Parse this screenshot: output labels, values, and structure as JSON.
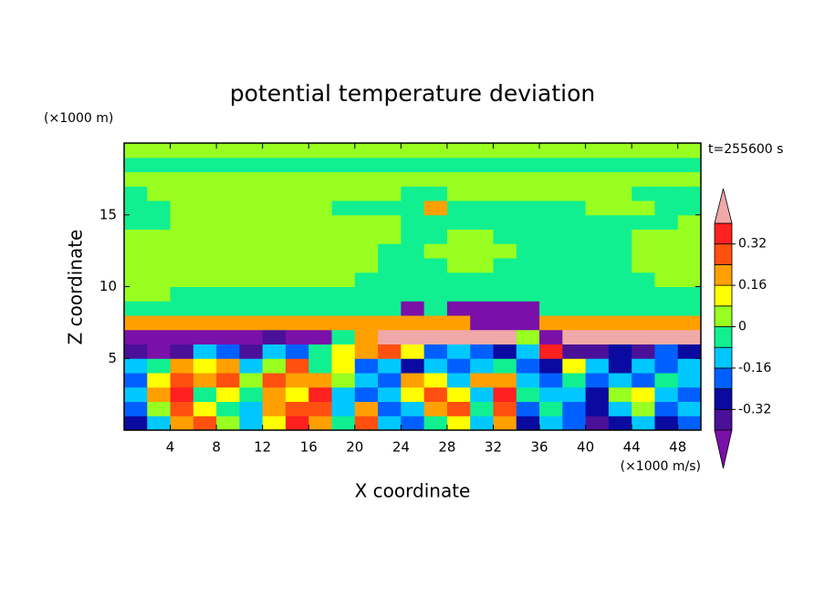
{
  "chart_data": {
    "type": "contour",
    "title": "potential temperature deviation",
    "time_label": "t=255600 s",
    "xlabel": "X coordinate",
    "xunit": "(×1000 m/s)",
    "ylabel": "Z coordinate",
    "yunit": "(×1000 m)",
    "xlim": [
      0,
      50
    ],
    "xticks": [
      4,
      8,
      12,
      16,
      20,
      24,
      28,
      32,
      36,
      40,
      44,
      48
    ],
    "ylim": [
      0,
      20
    ],
    "yticks": [
      5,
      10,
      15
    ],
    "levels": [
      -0.4,
      -0.32,
      -0.24,
      -0.16,
      -0.08,
      0,
      0.08,
      0.16,
      0.24,
      0.32,
      0.4
    ],
    "colors": [
      "#7a10a8",
      "#4a1098",
      "#0a0aa0",
      "#0060ff",
      "#00c8ff",
      "#10f090",
      "#98ff20",
      "#ffff00",
      "#ffa000",
      "#ff5010",
      "#ff2020",
      "#f0a8a8"
    ],
    "cbar_ticks": [
      0.32,
      0.16,
      0,
      -0.16,
      -0.32
    ],
    "x": [
      1,
      3,
      5,
      7,
      9,
      11,
      13,
      15,
      17,
      19,
      21,
      23,
      25,
      27,
      29,
      31,
      33,
      35,
      37,
      39,
      41,
      43,
      45,
      47,
      49
    ],
    "y": [
      0.5,
      1.5,
      2.5,
      3.5,
      4.5,
      5.5,
      6.5,
      7.5,
      8.5,
      9.5,
      10.5,
      11.5,
      12.5,
      13.5,
      14.5,
      15.5,
      16.5,
      17.5,
      18.5,
      19.5
    ],
    "values": [
      [
        -0.28,
        -0.12,
        0.2,
        0.28,
        0.04,
        -0.12,
        0.12,
        0.36,
        0.2,
        -0.04,
        0.28,
        -0.12,
        -0.2,
        -0.04,
        0.12,
        -0.12,
        0.2,
        -0.28,
        -0.12,
        -0.2,
        -0.36,
        -0.28,
        -0.12,
        -0.28,
        -0.2
      ],
      [
        -0.2,
        0.04,
        0.28,
        0.12,
        -0.04,
        -0.12,
        0.2,
        0.28,
        0.28,
        -0.12,
        0.2,
        -0.2,
        -0.12,
        0.2,
        0.28,
        -0.04,
        0.28,
        -0.2,
        -0.04,
        -0.2,
        -0.28,
        -0.12,
        0.04,
        -0.2,
        -0.12
      ],
      [
        -0.12,
        0.2,
        0.36,
        -0.04,
        0.12,
        -0.04,
        0.2,
        0.12,
        0.36,
        -0.12,
        -0.2,
        -0.12,
        0.12,
        0.28,
        0.12,
        -0.12,
        0.36,
        -0.04,
        -0.12,
        -0.12,
        -0.28,
        0.04,
        0.12,
        -0.12,
        -0.2
      ],
      [
        -0.2,
        0.12,
        0.28,
        0.2,
        0.28,
        0.04,
        0.28,
        0.2,
        0.2,
        0.04,
        -0.12,
        -0.2,
        0.2,
        0.12,
        -0.12,
        0.2,
        0.2,
        -0.12,
        -0.2,
        -0.04,
        -0.2,
        -0.12,
        -0.2,
        -0.04,
        -0.12
      ],
      [
        -0.12,
        -0.04,
        0.2,
        0.12,
        0.2,
        -0.12,
        0.04,
        0.28,
        -0.04,
        0.12,
        -0.2,
        -0.12,
        -0.28,
        -0.12,
        -0.2,
        -0.12,
        -0.04,
        -0.2,
        -0.28,
        0.12,
        -0.12,
        -0.28,
        -0.12,
        -0.2,
        -0.12
      ],
      [
        -0.36,
        -0.45,
        -0.36,
        -0.12,
        -0.2,
        -0.36,
        -0.12,
        -0.2,
        -0.04,
        0.12,
        0.2,
        0.28,
        0.12,
        -0.2,
        -0.12,
        -0.2,
        -0.28,
        -0.12,
        0.36,
        -0.36,
        -0.36,
        -0.28,
        -0.36,
        -0.2,
        -0.28
      ],
      [
        -0.45,
        -0.45,
        -0.45,
        -0.45,
        -0.45,
        -0.45,
        -0.36,
        -0.45,
        -0.45,
        -0.04,
        0.2,
        0.45,
        0.45,
        0.45,
        0.45,
        0.45,
        0.45,
        0.04,
        -0.45,
        0.45,
        0.45,
        0.45,
        0.45,
        0.45,
        0.45
      ],
      [
        0.2,
        0.2,
        0.2,
        0.2,
        0.2,
        0.2,
        0.2,
        0.2,
        0.2,
        0.2,
        0.2,
        0.2,
        0.2,
        0.2,
        0.2,
        -0.45,
        -0.45,
        -0.45,
        0.2,
        0.2,
        0.2,
        0.2,
        0.2,
        0.2,
        0.2
      ],
      [
        -0.04,
        -0.04,
        -0.04,
        -0.04,
        -0.04,
        -0.04,
        -0.04,
        -0.04,
        -0.04,
        -0.04,
        -0.04,
        -0.04,
        -0.45,
        -0.04,
        -0.45,
        -0.45,
        -0.45,
        -0.45,
        -0.04,
        -0.04,
        -0.04,
        -0.04,
        -0.04,
        -0.04,
        -0.04
      ],
      [
        0.04,
        0.04,
        -0.04,
        -0.04,
        -0.04,
        -0.04,
        -0.04,
        -0.04,
        -0.04,
        -0.04,
        -0.04,
        -0.04,
        -0.04,
        -0.04,
        -0.04,
        -0.04,
        -0.04,
        -0.04,
        -0.04,
        -0.04,
        -0.04,
        -0.04,
        -0.04,
        -0.04,
        -0.04
      ],
      [
        0.04,
        0.04,
        0.04,
        0.04,
        0.04,
        0.04,
        0.04,
        0.04,
        0.04,
        0.04,
        -0.04,
        -0.04,
        -0.04,
        -0.04,
        -0.04,
        -0.04,
        -0.04,
        -0.04,
        -0.04,
        -0.04,
        -0.04,
        -0.04,
        -0.04,
        0.04,
        0.04
      ],
      [
        0.04,
        0.04,
        0.04,
        0.04,
        0.04,
        0.04,
        0.04,
        0.04,
        0.04,
        0.04,
        0.04,
        -0.04,
        -0.04,
        -0.04,
        0.04,
        0.04,
        -0.04,
        -0.04,
        -0.04,
        -0.04,
        -0.04,
        -0.04,
        0.04,
        0.04,
        0.04
      ],
      [
        0.04,
        0.04,
        0.04,
        0.04,
        0.04,
        0.04,
        0.04,
        0.04,
        0.04,
        0.04,
        0.04,
        -0.04,
        -0.04,
        0.04,
        0.04,
        0.04,
        0.04,
        -0.04,
        -0.04,
        -0.04,
        -0.04,
        -0.04,
        0.04,
        0.04,
        0.04
      ],
      [
        0.04,
        0.04,
        0.04,
        0.04,
        0.04,
        0.04,
        0.04,
        0.04,
        0.04,
        0.04,
        0.04,
        0.04,
        -0.04,
        -0.04,
        0.04,
        0.04,
        -0.04,
        -0.04,
        -0.04,
        -0.04,
        -0.04,
        -0.04,
        0.04,
        0.04,
        0.04
      ],
      [
        -0.04,
        -0.04,
        0.04,
        0.04,
        0.04,
        0.04,
        0.04,
        0.04,
        0.04,
        0.04,
        0.04,
        0.04,
        -0.04,
        -0.04,
        -0.04,
        -0.04,
        -0.04,
        -0.04,
        -0.04,
        -0.04,
        -0.04,
        -0.04,
        -0.04,
        -0.04,
        0.04
      ],
      [
        -0.04,
        -0.04,
        0.04,
        0.04,
        0.04,
        0.04,
        0.04,
        0.04,
        0.04,
        -0.04,
        -0.04,
        -0.04,
        -0.04,
        0.2,
        -0.04,
        -0.04,
        -0.04,
        -0.04,
        -0.04,
        -0.04,
        0.04,
        0.04,
        0.04,
        -0.04,
        -0.04
      ],
      [
        -0.04,
        0.04,
        0.04,
        0.04,
        0.04,
        0.04,
        0.04,
        0.04,
        0.04,
        0.04,
        0.04,
        0.04,
        -0.04,
        -0.04,
        0.04,
        0.04,
        0.04,
        0.04,
        0.04,
        0.04,
        0.04,
        0.04,
        -0.04,
        -0.04,
        -0.04
      ],
      [
        0.04,
        0.04,
        0.04,
        0.04,
        0.04,
        0.04,
        0.04,
        0.04,
        0.04,
        0.04,
        0.04,
        0.04,
        0.04,
        0.04,
        0.04,
        0.04,
        0.04,
        0.04,
        0.04,
        0.04,
        0.04,
        0.04,
        0.04,
        0.04,
        0.04
      ],
      [
        -0.04,
        -0.04,
        -0.04,
        -0.04,
        -0.04,
        -0.04,
        -0.04,
        -0.04,
        -0.04,
        -0.04,
        -0.04,
        -0.04,
        -0.04,
        -0.04,
        -0.04,
        -0.04,
        -0.04,
        -0.04,
        -0.04,
        -0.04,
        -0.04,
        -0.04,
        -0.04,
        -0.04,
        -0.04
      ],
      [
        0.04,
        0.04,
        0.04,
        0.04,
        0.04,
        0.04,
        0.04,
        0.04,
        0.04,
        0.04,
        0.04,
        0.04,
        0.04,
        0.04,
        0.04,
        0.04,
        0.04,
        0.04,
        0.04,
        0.04,
        0.04,
        0.04,
        0.04,
        0.04,
        0.04
      ]
    ]
  }
}
